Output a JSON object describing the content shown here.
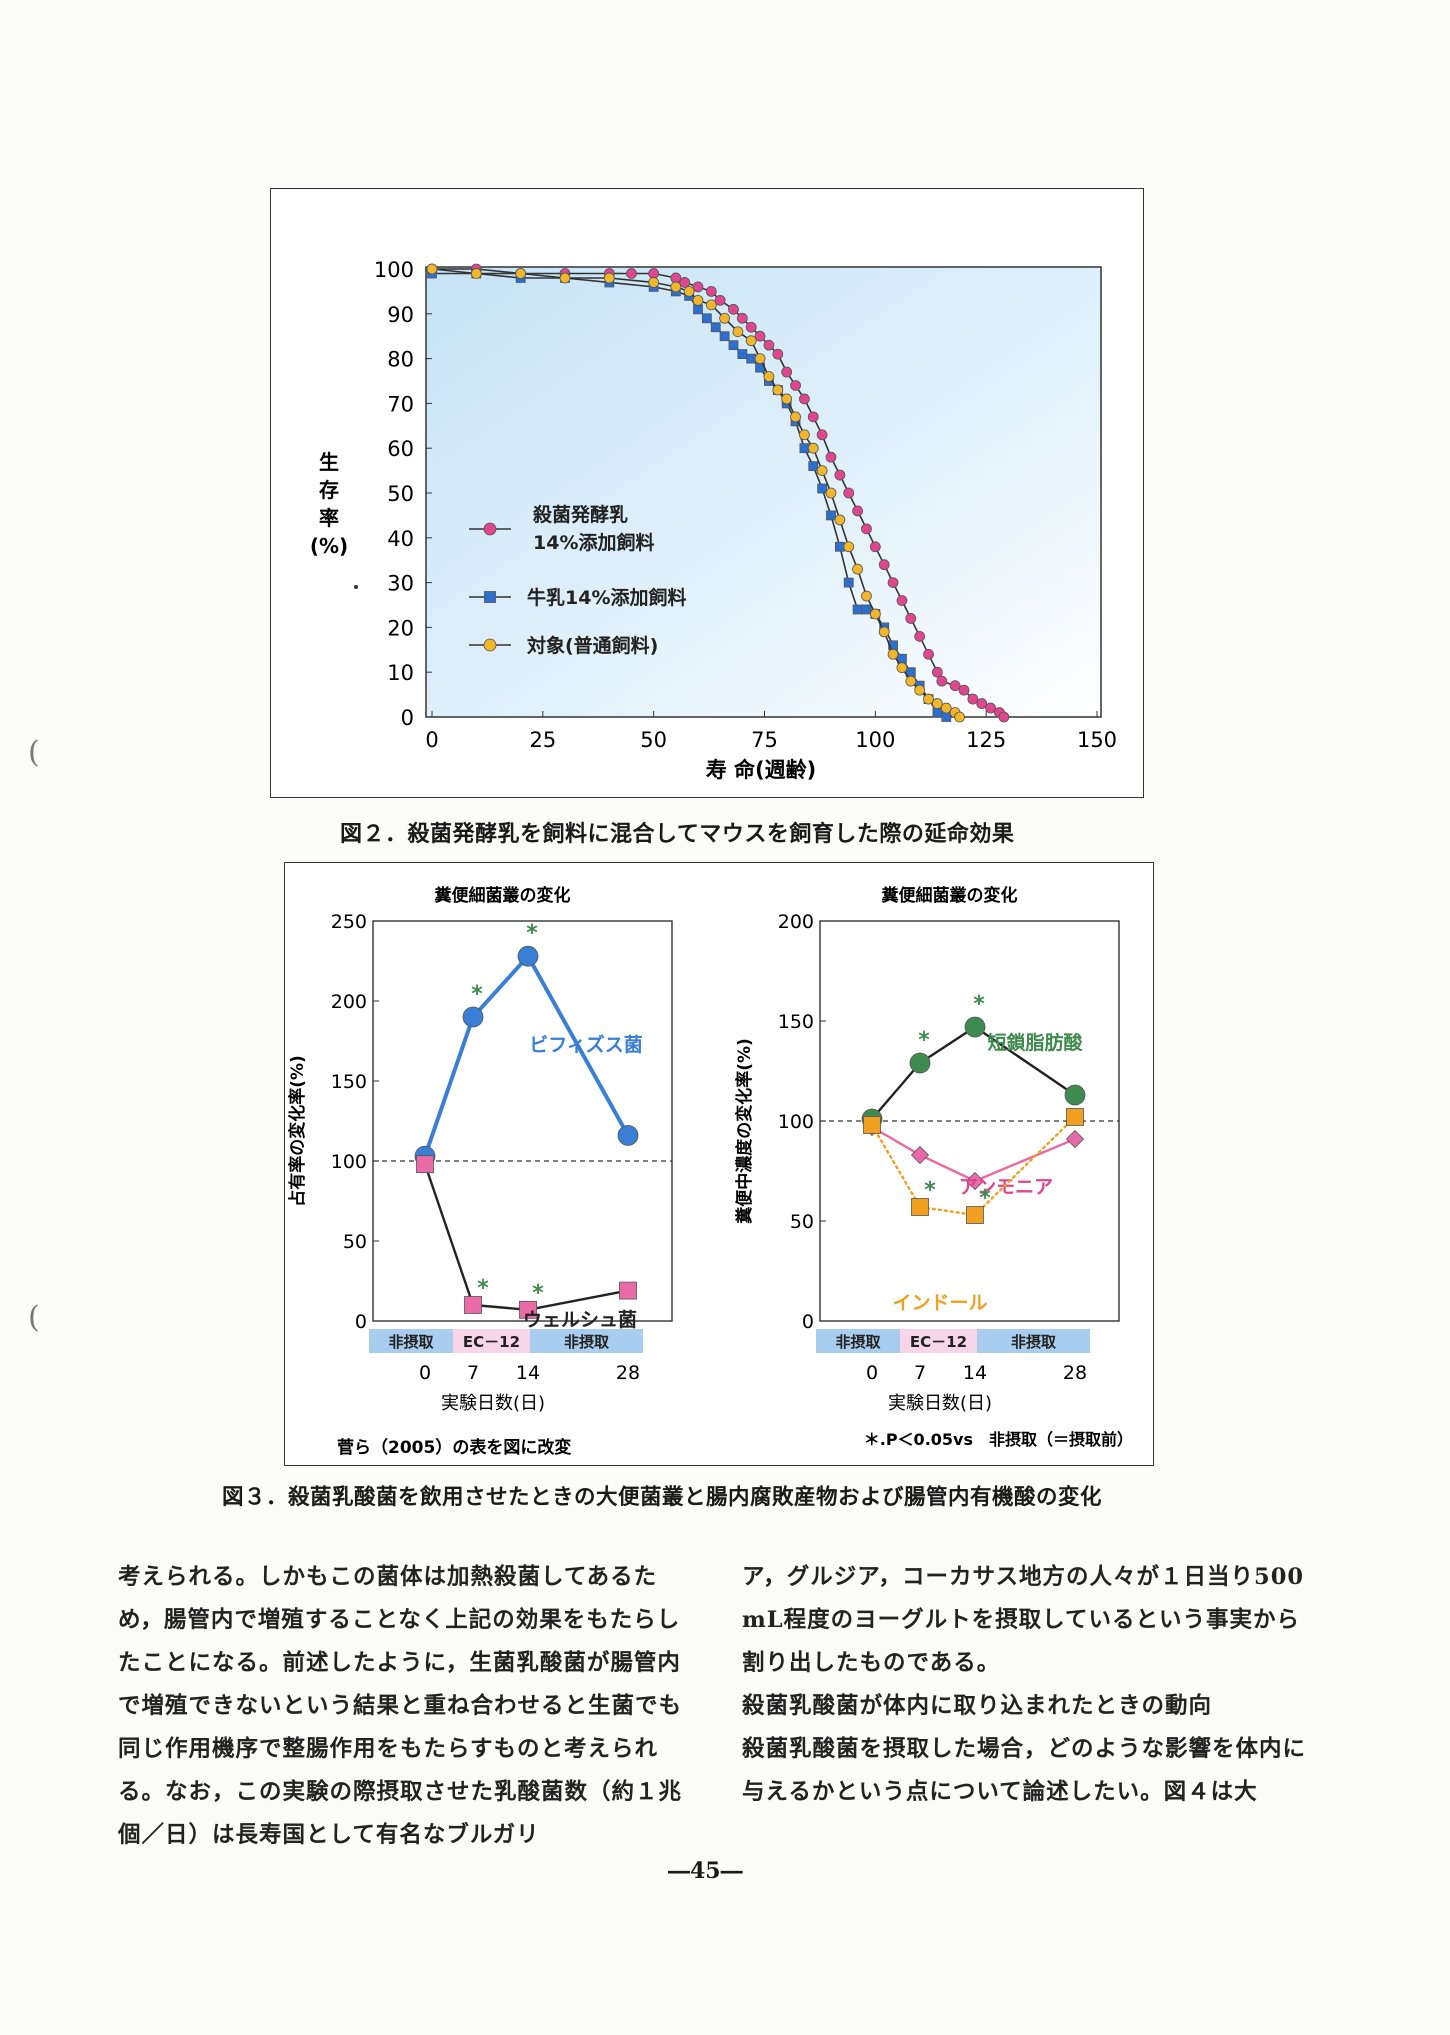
{
  "figure2": {
    "caption": "図２．殺菌発酵乳を飼料に混合してマウスを飼育した際の延命効果",
    "legend": [
      "殺菌発酵乳\n14%添加飼料",
      "牛乳14%添加飼料",
      "対象(普通飼料)"
    ],
    "chart_data": {
      "type": "line",
      "xlabel": "寿 命(週齢)",
      "ylabel": "生\n存\n率\n(%)",
      "xlim": [
        0,
        150
      ],
      "ylim": [
        0,
        100
      ],
      "xticks": [
        0,
        25,
        50,
        75,
        100,
        125,
        150
      ],
      "yticks": [
        0,
        10,
        20,
        30,
        40,
        50,
        60,
        70,
        80,
        90,
        100
      ],
      "background": "light blue gradient",
      "series": [
        {
          "name": "殺菌発酵乳 14%添加飼料",
          "color": "#e0458f",
          "marker": "circle",
          "points": [
            [
              0,
              100
            ],
            [
              10,
              100
            ],
            [
              20,
              99
            ],
            [
              30,
              99
            ],
            [
              40,
              99
            ],
            [
              45,
              99
            ],
            [
              50,
              99
            ],
            [
              55,
              98
            ],
            [
              57,
              97
            ],
            [
              60,
              96
            ],
            [
              63,
              95
            ],
            [
              65,
              93
            ],
            [
              68,
              91
            ],
            [
              70,
              89
            ],
            [
              72,
              87
            ],
            [
              74,
              85
            ],
            [
              76,
              83
            ],
            [
              78,
              81
            ],
            [
              80,
              77
            ],
            [
              82,
              74
            ],
            [
              84,
              71
            ],
            [
              86,
              67
            ],
            [
              88,
              63
            ],
            [
              90,
              58
            ],
            [
              92,
              54
            ],
            [
              94,
              50
            ],
            [
              96,
              46
            ],
            [
              98,
              42
            ],
            [
              100,
              38
            ],
            [
              102,
              34
            ],
            [
              104,
              30
            ],
            [
              106,
              26
            ],
            [
              108,
              22
            ],
            [
              110,
              18
            ],
            [
              112,
              14
            ],
            [
              114,
              10
            ],
            [
              115,
              8
            ],
            [
              118,
              7
            ],
            [
              120,
              6
            ],
            [
              122,
              4
            ],
            [
              124,
              3
            ],
            [
              126,
              2
            ],
            [
              128,
              1
            ],
            [
              129,
              0
            ]
          ]
        },
        {
          "name": "牛乳14%添加飼料",
          "color": "#2d6fcf",
          "marker": "square",
          "points": [
            [
              0,
              99
            ],
            [
              10,
              99
            ],
            [
              20,
              98
            ],
            [
              30,
              98
            ],
            [
              40,
              97
            ],
            [
              50,
              96
            ],
            [
              55,
              95
            ],
            [
              58,
              94
            ],
            [
              60,
              91
            ],
            [
              62,
              89
            ],
            [
              64,
              87
            ],
            [
              66,
              85
            ],
            [
              68,
              83
            ],
            [
              70,
              81
            ],
            [
              72,
              80
            ],
            [
              74,
              78
            ],
            [
              76,
              75
            ],
            [
              78,
              73
            ],
            [
              80,
              70
            ],
            [
              82,
              66
            ],
            [
              84,
              60
            ],
            [
              86,
              56
            ],
            [
              88,
              51
            ],
            [
              90,
              45
            ],
            [
              92,
              38
            ],
            [
              94,
              30
            ],
            [
              96,
              24
            ],
            [
              98,
              24
            ],
            [
              100,
              23
            ],
            [
              102,
              20
            ],
            [
              104,
              16
            ],
            [
              106,
              13
            ],
            [
              108,
              10
            ],
            [
              110,
              7
            ],
            [
              112,
              4
            ],
            [
              114,
              1
            ],
            [
              116,
              0
            ]
          ]
        },
        {
          "name": "対象(普通飼料)",
          "color": "#f2b62a",
          "marker": "circle",
          "points": [
            [
              0,
              100
            ],
            [
              10,
              99
            ],
            [
              20,
              99
            ],
            [
              30,
              98
            ],
            [
              40,
              98
            ],
            [
              50,
              97
            ],
            [
              55,
              96
            ],
            [
              58,
              95
            ],
            [
              60,
              93
            ],
            [
              63,
              92
            ],
            [
              66,
              89
            ],
            [
              69,
              86
            ],
            [
              72,
              84
            ],
            [
              74,
              80
            ],
            [
              76,
              76
            ],
            [
              78,
              73
            ],
            [
              80,
              71
            ],
            [
              82,
              67
            ],
            [
              84,
              63
            ],
            [
              86,
              60
            ],
            [
              88,
              55
            ],
            [
              90,
              50
            ],
            [
              92,
              44
            ],
            [
              94,
              38
            ],
            [
              96,
              33
            ],
            [
              98,
              27
            ],
            [
              100,
              23
            ],
            [
              102,
              19
            ],
            [
              104,
              14
            ],
            [
              106,
              11
            ],
            [
              108,
              8
            ],
            [
              110,
              6
            ],
            [
              112,
              4
            ],
            [
              114,
              3
            ],
            [
              116,
              2
            ],
            [
              118,
              1
            ],
            [
              119,
              0
            ]
          ]
        }
      ]
    }
  },
  "figure3": {
    "caption": "図３．殺菌乳酸菌を飲用させたときの大便菌叢と腸内腐敗産物および腸管内有機酸の変化",
    "source_note": "菅ら（2005）の表を図に改変",
    "sig_note": "＊.P＜0.05vs　非摂取（＝摂取前）",
    "period_labels": [
      "非摂取",
      "EC－12",
      "非摂取"
    ],
    "charts": [
      {
        "type": "line",
        "title": "糞便細菌叢の変化",
        "ylabel": "占有率の変化率(%)",
        "xlabel": "実験日数(日)",
        "x": [
          0,
          7,
          14,
          28
        ],
        "ylim": [
          0,
          250
        ],
        "yticks": [
          0,
          50,
          100,
          150,
          200,
          250
        ],
        "reference_line": 100,
        "series": [
          {
            "name": "ビフィズス菌",
            "color": "#3a7fd5",
            "marker": "circle",
            "values": [
              103,
              190,
              228,
              116
            ],
            "significant": [
              false,
              true,
              true,
              false
            ]
          },
          {
            "name": "ウェルシュ菌",
            "color": "#e86aa6",
            "marker": "square",
            "values": [
              98,
              10,
              7,
              19
            ],
            "significant": [
              false,
              true,
              true,
              false
            ]
          }
        ]
      },
      {
        "type": "line",
        "title": "糞便細菌叢の変化",
        "ylabel": "糞便中濃度の変化率(%)",
        "xlabel": "実験日数(日)",
        "x": [
          0,
          7,
          14,
          28
        ],
        "ylim": [
          0,
          200
        ],
        "yticks": [
          0,
          50,
          100,
          150,
          200
        ],
        "reference_line": 100,
        "series": [
          {
            "name": "短鎖脂肪酸",
            "color": "#3f8a4f",
            "marker": "circle",
            "values": [
              101,
              129,
              147,
              113
            ],
            "significant": [
              false,
              true,
              true,
              false
            ]
          },
          {
            "name": "アンモニア",
            "color": "#e86aa6",
            "marker": "diamond",
            "values": [
              97,
              83,
              70,
              91
            ],
            "significant": [
              false,
              false,
              false,
              false
            ]
          },
          {
            "name": "インドール",
            "color": "#f2a020",
            "marker": "square",
            "values": [
              98,
              57,
              53,
              102
            ],
            "significant": [
              false,
              true,
              true,
              false
            ]
          }
        ]
      }
    ]
  },
  "body_text": {
    "left": "考えられる。しかもこの菌体は加熱殺菌してあるため，腸管内で増殖することなく上記の効果をもたらしたことになる。前述したように，生菌乳酸菌が腸管内で増殖できないという結果と重ね合わせると生菌でも同じ作用機序で整腸作用をもたらすものと考えられる。なお，この実験の際摂取させた乳酸菌数（約１兆個／日）は長寿国として有名なブルガリ",
    "right_p1": "ア，グルジア，コーカサス地方の人々が１日当り500 mL程度のヨーグルトを摂取しているという事実から割り出したものである。",
    "heading": "殺菌乳酸菌が体内に取り込まれたときの動向",
    "right_p2": "殺菌乳酸菌を摂取した場合，どのような影響を体内に与えるかという点について論述したい。図４は大"
  },
  "page_number": "―45―"
}
